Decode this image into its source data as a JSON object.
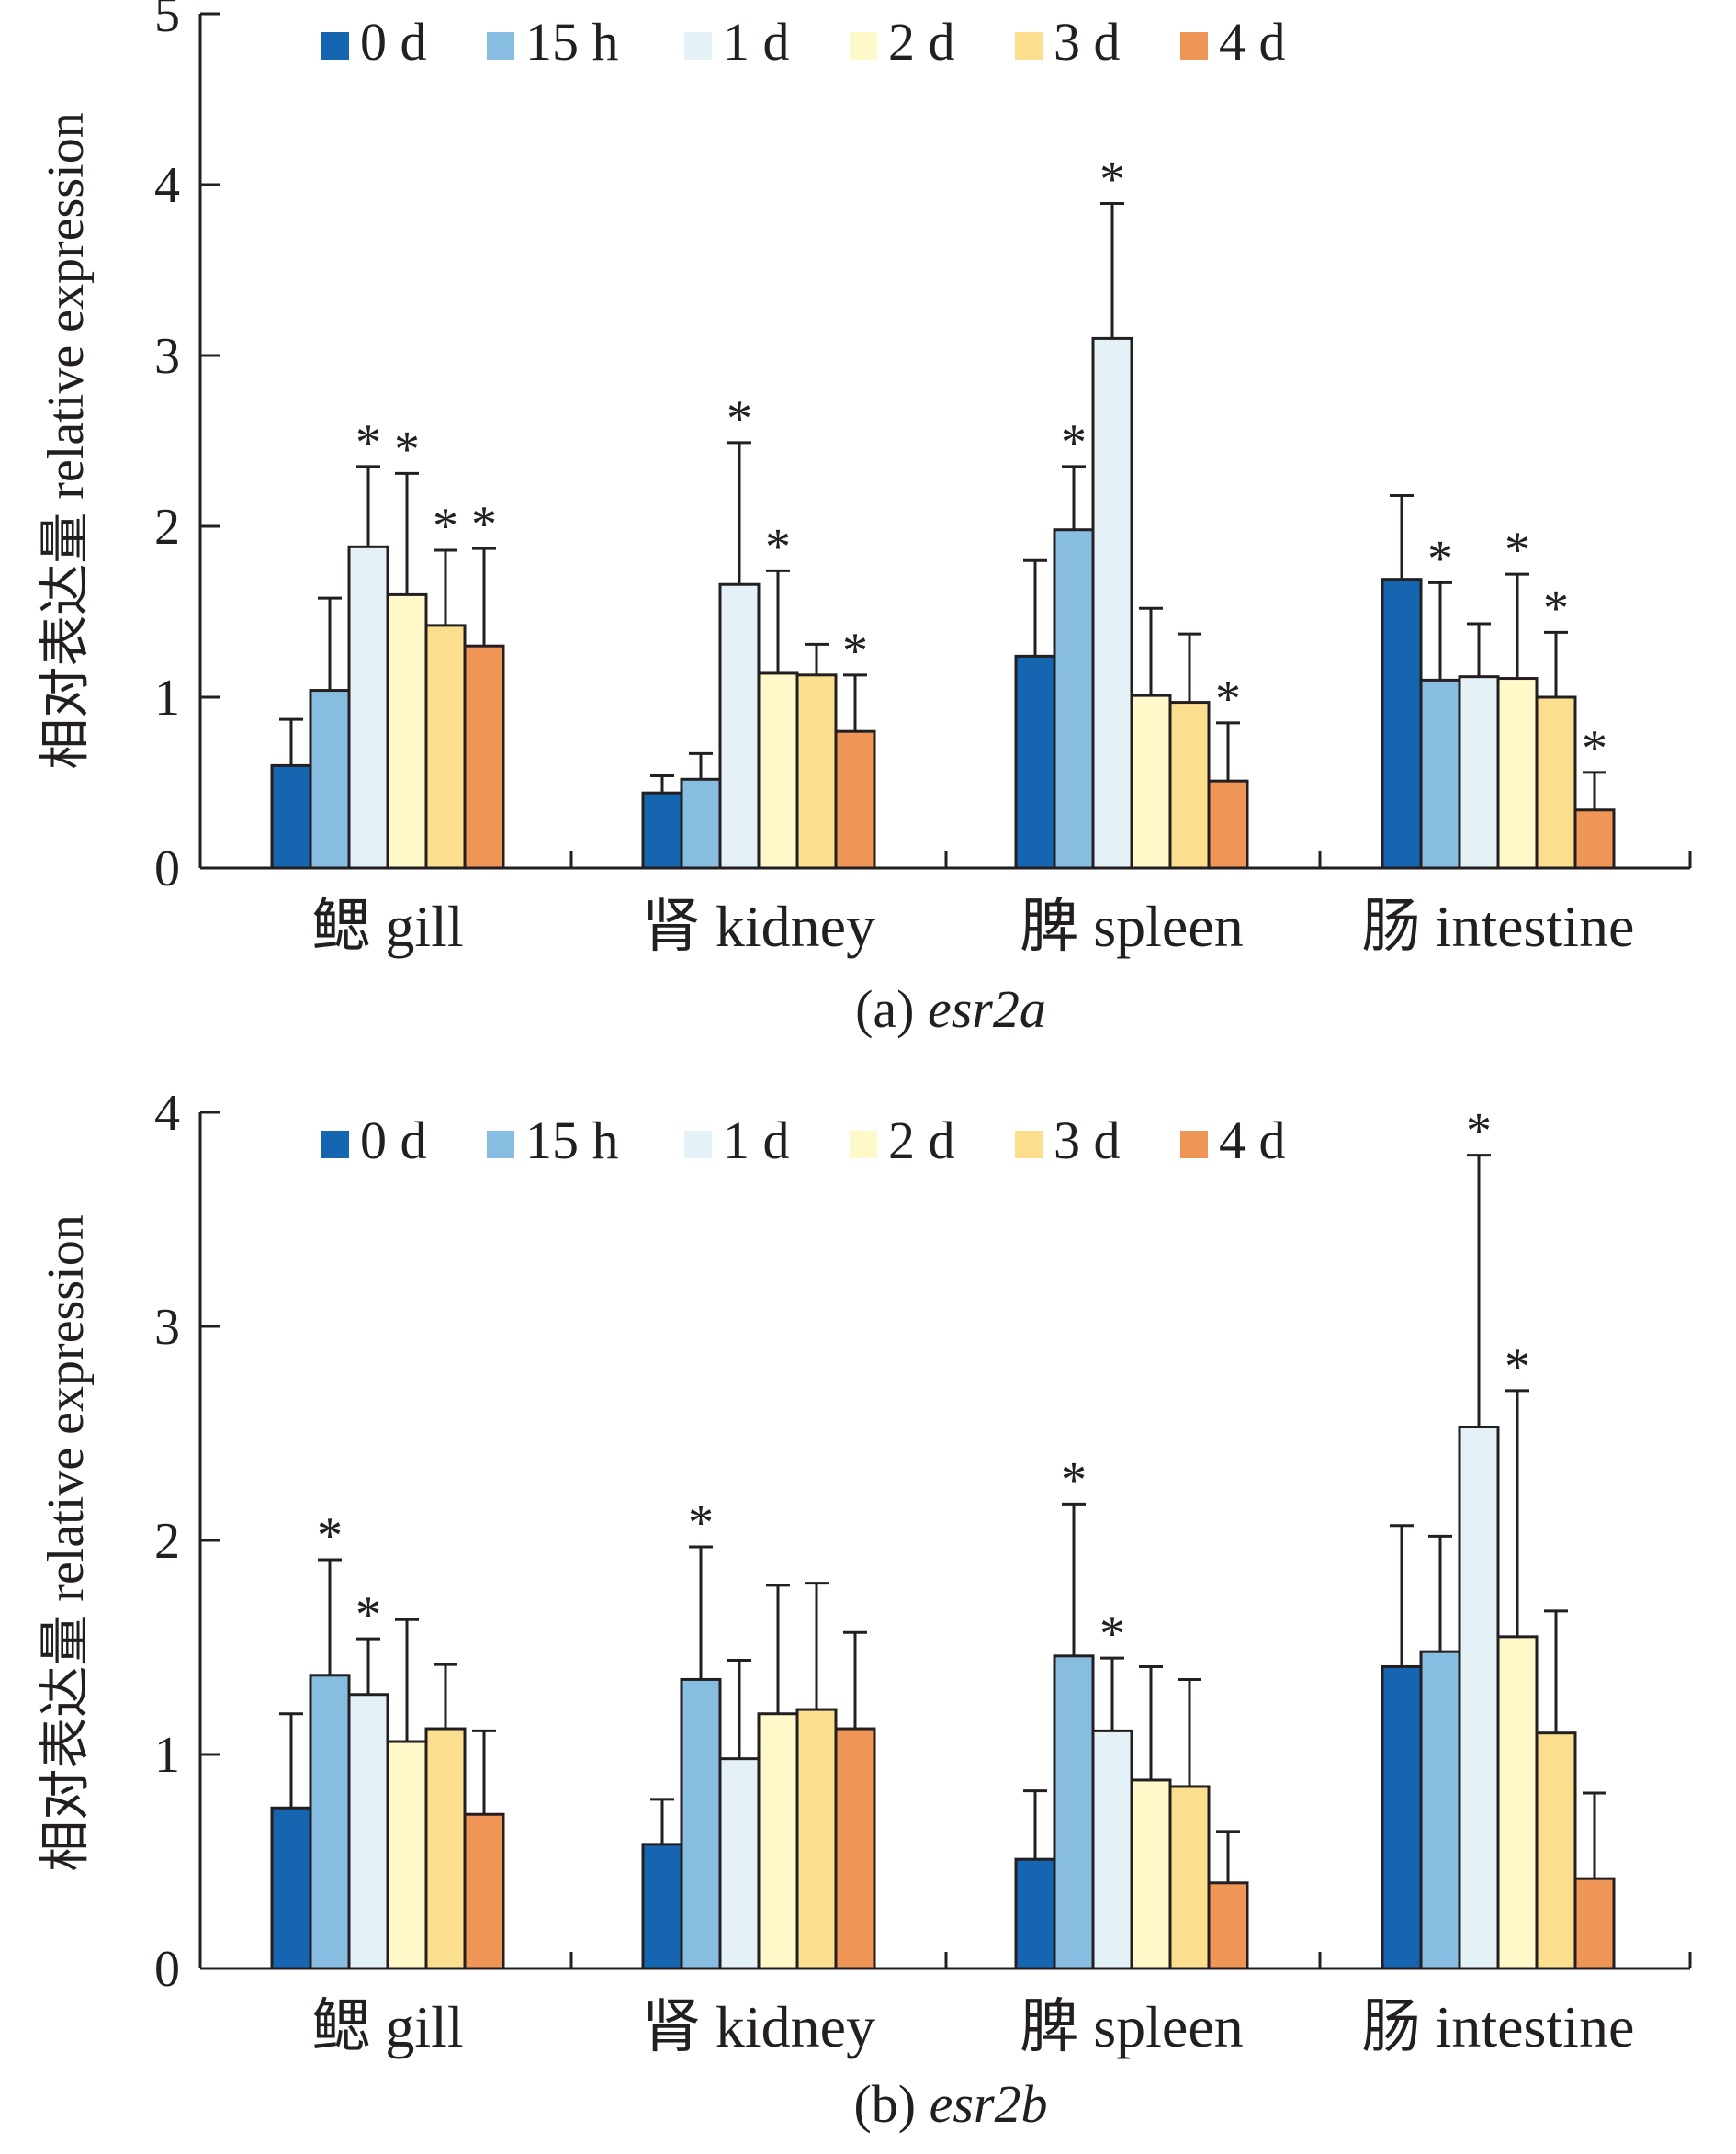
{
  "legend": [
    "0 d",
    "15 h",
    "1 d",
    "2 d",
    "3 d",
    "4 d"
  ],
  "colors": [
    "#1565b0",
    "#86bde0",
    "#e4f1f7",
    "#fff8c8",
    "#fbdf8f",
    "#ef9555"
  ],
  "chart_data": [
    {
      "type": "bar",
      "title": "",
      "caption_prefix": "(a) ",
      "caption_gene": "esr2a",
      "ylabel": "相对表达量 relative expression",
      "xlabel": "",
      "ylim": [
        0,
        5
      ],
      "yticks": [
        "0",
        "1",
        "2",
        "3",
        "4",
        "5"
      ],
      "categories": [
        "鳃 gill",
        "肾 kidney",
        "脾 spleen",
        "肠 intestine"
      ],
      "series": [
        {
          "name": "0 d",
          "values": [
            0.6,
            0.44,
            1.24,
            1.69
          ],
          "errors": [
            0.27,
            0.1,
            0.56,
            0.49
          ],
          "sig": [
            false,
            false,
            false,
            false
          ]
        },
        {
          "name": "15 h",
          "values": [
            1.04,
            0.52,
            1.98,
            1.1
          ],
          "errors": [
            0.54,
            0.15,
            0.37,
            0.57
          ],
          "sig": [
            false,
            false,
            true,
            true
          ]
        },
        {
          "name": "1 d",
          "values": [
            1.88,
            1.66,
            3.1,
            1.12
          ],
          "errors": [
            0.47,
            0.83,
            0.79,
            0.31
          ],
          "sig": [
            true,
            true,
            true,
            false
          ]
        },
        {
          "name": "2 d",
          "values": [
            1.6,
            1.14,
            1.01,
            1.11
          ],
          "errors": [
            0.71,
            0.6,
            0.51,
            0.61
          ],
          "sig": [
            true,
            true,
            false,
            true
          ]
        },
        {
          "name": "3 d",
          "values": [
            1.42,
            1.13,
            0.97,
            1.0
          ],
          "errors": [
            0.44,
            0.18,
            0.4,
            0.38
          ],
          "sig": [
            true,
            false,
            false,
            true
          ]
        },
        {
          "name": "4 d",
          "values": [
            1.3,
            0.8,
            0.51,
            0.34
          ],
          "errors": [
            0.57,
            0.33,
            0.34,
            0.22
          ],
          "sig": [
            true,
            true,
            true,
            true
          ]
        }
      ]
    },
    {
      "type": "bar",
      "title": "",
      "caption_prefix": "(b) ",
      "caption_gene": "esr2b",
      "ylabel": "相对表达量 relative expression",
      "xlabel": "",
      "ylim": [
        0,
        4
      ],
      "yticks": [
        "0",
        "1",
        "2",
        "3",
        "4"
      ],
      "categories": [
        "鳃 gill",
        "肾 kidney",
        "脾 spleen",
        "肠 intestine"
      ],
      "series": [
        {
          "name": "0 d",
          "values": [
            0.75,
            0.58,
            0.51,
            1.41
          ],
          "errors": [
            0.44,
            0.21,
            0.32,
            0.66
          ],
          "sig": [
            false,
            false,
            false,
            false
          ]
        },
        {
          "name": "15 h",
          "values": [
            1.37,
            1.35,
            1.46,
            1.48
          ],
          "errors": [
            0.54,
            0.62,
            0.71,
            0.54
          ],
          "sig": [
            true,
            true,
            true,
            false
          ]
        },
        {
          "name": "1 d",
          "values": [
            1.28,
            0.98,
            1.11,
            2.53
          ],
          "errors": [
            0.26,
            0.46,
            0.34,
            1.27
          ],
          "sig": [
            true,
            false,
            true,
            true
          ]
        },
        {
          "name": "2 d",
          "values": [
            1.06,
            1.19,
            0.88,
            1.55
          ],
          "errors": [
            0.57,
            0.6,
            0.53,
            1.15
          ],
          "sig": [
            false,
            false,
            false,
            true
          ]
        },
        {
          "name": "3 d",
          "values": [
            1.12,
            1.21,
            0.85,
            1.1
          ],
          "errors": [
            0.3,
            0.59,
            0.5,
            0.57
          ],
          "sig": [
            false,
            false,
            false,
            false
          ]
        },
        {
          "name": "4 d",
          "values": [
            0.72,
            1.12,
            0.4,
            0.42
          ],
          "errors": [
            0.39,
            0.45,
            0.24,
            0.4
          ],
          "sig": [
            false,
            false,
            false,
            false
          ]
        }
      ]
    }
  ]
}
